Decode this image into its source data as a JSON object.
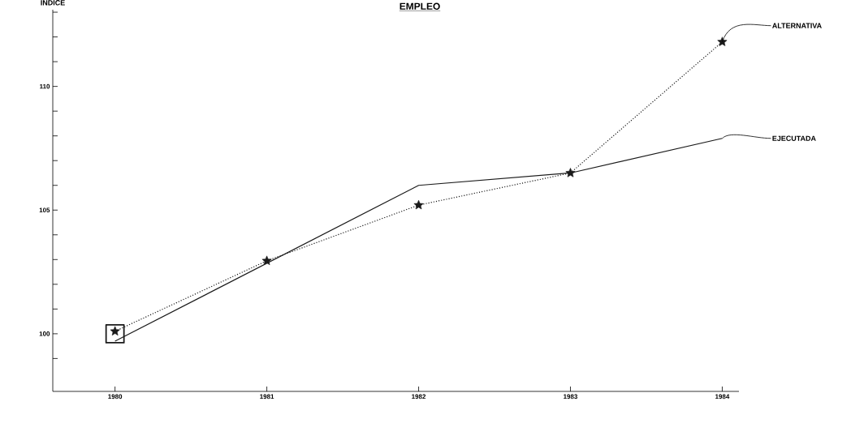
{
  "chart_data": {
    "type": "line",
    "title": "EMPLEO",
    "ylabel": "INDICE",
    "x": [
      1980,
      1981,
      1982,
      1983,
      1984
    ],
    "series": [
      {
        "name": "ALTERNATIVA",
        "color": "#1a1a1a",
        "values": [
          100.1,
          102.95,
          105.2,
          106.5,
          111.8
        ],
        "marker": "star",
        "line_style": "dotted"
      },
      {
        "name": "EJECUTADA",
        "color": "#1a1a1a",
        "values": [
          99.7,
          102.85,
          106.0,
          106.5,
          107.9
        ],
        "marker": "none",
        "line_style": "solid"
      },
      {
        "type": "scatter",
        "color": "#1a1a1a",
        "x": [
          1980
        ],
        "values": [
          100
        ],
        "marker": "square"
      }
    ],
    "xlim": [
      1979.59,
      1984.11
    ],
    "ylim": [
      97.67,
      113.1
    ],
    "xticks": [
      1980,
      1981,
      1982,
      1983,
      1984
    ],
    "yticks": [
      {
        "value": 99,
        "label": null
      },
      100,
      {
        "value": 101,
        "label": null
      },
      {
        "value": 102,
        "label": null
      },
      {
        "value": 103,
        "label": null
      },
      {
        "value": 104,
        "label": null
      },
      105,
      {
        "value": 106,
        "label": null
      },
      {
        "value": 107,
        "label": null
      },
      {
        "value": 108,
        "label": null
      },
      {
        "value": 109,
        "label": null
      },
      110,
      {
        "value": 111,
        "label": null
      },
      {
        "value": 112,
        "label": null
      },
      {
        "value": 113,
        "label": null
      }
    ],
    "grid": false
  }
}
